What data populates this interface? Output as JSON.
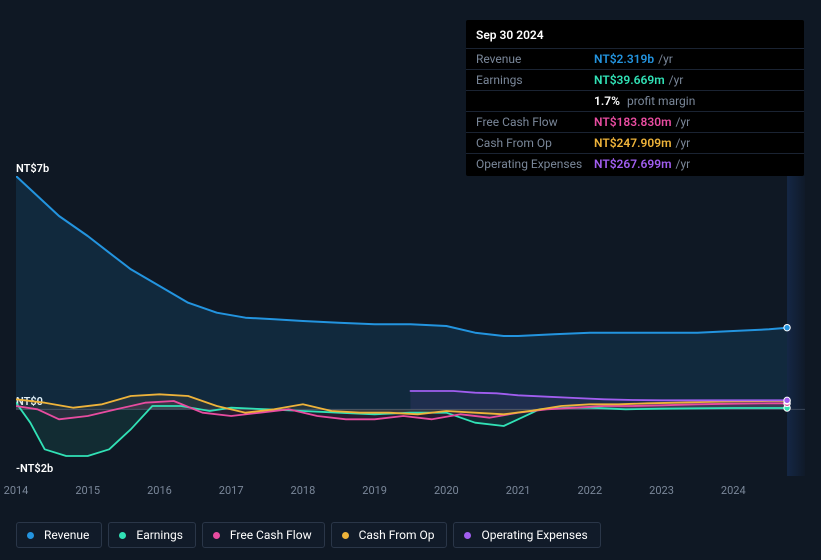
{
  "tooltip": {
    "date": "Sep 30 2024",
    "rows": [
      {
        "label": "Revenue",
        "value": "NT$2.319b",
        "color": "#2394df",
        "suffix": "/yr",
        "extra": ""
      },
      {
        "label": "Earnings",
        "value": "NT$39.669m",
        "color": "#31e2b6",
        "suffix": "/yr",
        "extra": "1.7% profit margin"
      },
      {
        "label": "Free Cash Flow",
        "value": "NT$183.830m",
        "color": "#e84ca0",
        "suffix": "/yr",
        "extra": ""
      },
      {
        "label": "Cash From Op",
        "value": "NT$247.909m",
        "color": "#eeb33a",
        "suffix": "/yr",
        "extra": ""
      },
      {
        "label": "Operating Expenses",
        "value": "NT$267.699m",
        "color": "#a15ef0",
        "suffix": "/yr",
        "extra": ""
      }
    ]
  },
  "chart": {
    "background": "#0f1824",
    "y_min": -2,
    "y_max": 7,
    "y_ticks": [
      {
        "v": 7,
        "label": "NT$7b"
      },
      {
        "v": 0,
        "label": "NT$0"
      },
      {
        "v": -2,
        "label": "-NT$2b"
      }
    ],
    "x_min": 2014,
    "x_max": 2025,
    "x_ticks": [
      2014,
      2015,
      2016,
      2017,
      2018,
      2019,
      2020,
      2021,
      2022,
      2023,
      2024
    ],
    "future_split_x": 2024.75,
    "zero_line_color": "#3a4658",
    "series": [
      {
        "name": "Revenue",
        "color": "#2394df",
        "fill": "rgba(35,148,223,0.14)",
        "width": 2,
        "pts": [
          [
            2014,
            7.0
          ],
          [
            2014.3,
            6.4
          ],
          [
            2014.6,
            5.8
          ],
          [
            2015,
            5.2
          ],
          [
            2015.3,
            4.7
          ],
          [
            2015.6,
            4.2
          ],
          [
            2016,
            3.7
          ],
          [
            2016.4,
            3.2
          ],
          [
            2016.8,
            2.9
          ],
          [
            2017.2,
            2.75
          ],
          [
            2017.6,
            2.7
          ],
          [
            2018,
            2.65
          ],
          [
            2018.5,
            2.6
          ],
          [
            2019,
            2.55
          ],
          [
            2019.5,
            2.55
          ],
          [
            2020,
            2.5
          ],
          [
            2020.4,
            2.3
          ],
          [
            2020.8,
            2.2
          ],
          [
            2021,
            2.2
          ],
          [
            2021.5,
            2.25
          ],
          [
            2022,
            2.3
          ],
          [
            2022.5,
            2.3
          ],
          [
            2023,
            2.3
          ],
          [
            2023.5,
            2.3
          ],
          [
            2024,
            2.35
          ],
          [
            2024.5,
            2.4
          ],
          [
            2024.75,
            2.45
          ]
        ]
      },
      {
        "name": "Earnings",
        "color": "#31e2b6",
        "fill": "rgba(49,226,182,0.10)",
        "width": 1.8,
        "pts": [
          [
            2014,
            0.2
          ],
          [
            2014.2,
            -0.4
          ],
          [
            2014.4,
            -1.2
          ],
          [
            2014.7,
            -1.4
          ],
          [
            2015,
            -1.4
          ],
          [
            2015.3,
            -1.2
          ],
          [
            2015.6,
            -0.6
          ],
          [
            2015.9,
            0.1
          ],
          [
            2016.3,
            0.1
          ],
          [
            2016.7,
            -0.05
          ],
          [
            2017,
            0.05
          ],
          [
            2017.5,
            0.0
          ],
          [
            2018,
            -0.05
          ],
          [
            2018.5,
            -0.1
          ],
          [
            2019,
            -0.15
          ],
          [
            2019.5,
            -0.1
          ],
          [
            2020,
            -0.1
          ],
          [
            2020.4,
            -0.4
          ],
          [
            2020.8,
            -0.5
          ],
          [
            2021,
            -0.3
          ],
          [
            2021.3,
            0.0
          ],
          [
            2021.7,
            0.05
          ],
          [
            2022,
            0.05
          ],
          [
            2022.5,
            0.0
          ],
          [
            2023,
            0.02
          ],
          [
            2023.5,
            0.03
          ],
          [
            2024,
            0.04
          ],
          [
            2024.5,
            0.04
          ],
          [
            2024.75,
            0.04
          ]
        ]
      },
      {
        "name": "Free Cash Flow",
        "color": "#e84ca0",
        "fill": "rgba(232,76,160,0.10)",
        "width": 1.8,
        "pts": [
          [
            2014,
            0.1
          ],
          [
            2014.3,
            0.0
          ],
          [
            2014.6,
            -0.3
          ],
          [
            2015,
            -0.2
          ],
          [
            2015.4,
            0.0
          ],
          [
            2015.8,
            0.2
          ],
          [
            2016.2,
            0.25
          ],
          [
            2016.6,
            -0.1
          ],
          [
            2017,
            -0.2
          ],
          [
            2017.4,
            -0.1
          ],
          [
            2017.8,
            0.0
          ],
          [
            2018.2,
            -0.2
          ],
          [
            2018.6,
            -0.3
          ],
          [
            2019,
            -0.3
          ],
          [
            2019.4,
            -0.2
          ],
          [
            2019.8,
            -0.3
          ],
          [
            2020.2,
            -0.15
          ],
          [
            2020.6,
            -0.25
          ],
          [
            2021,
            -0.1
          ],
          [
            2021.4,
            0.0
          ],
          [
            2021.8,
            0.05
          ],
          [
            2022.2,
            0.1
          ],
          [
            2022.6,
            0.1
          ],
          [
            2023,
            0.12
          ],
          [
            2023.5,
            0.15
          ],
          [
            2024,
            0.17
          ],
          [
            2024.5,
            0.18
          ],
          [
            2024.75,
            0.18
          ]
        ]
      },
      {
        "name": "Cash From Op",
        "color": "#eeb33a",
        "fill": "rgba(238,179,58,0.08)",
        "width": 1.8,
        "pts": [
          [
            2014,
            0.3
          ],
          [
            2014.4,
            0.2
          ],
          [
            2014.8,
            0.05
          ],
          [
            2015.2,
            0.15
          ],
          [
            2015.6,
            0.4
          ],
          [
            2016,
            0.45
          ],
          [
            2016.4,
            0.4
          ],
          [
            2016.8,
            0.1
          ],
          [
            2017.2,
            -0.1
          ],
          [
            2017.6,
            0.0
          ],
          [
            2018,
            0.15
          ],
          [
            2018.4,
            -0.05
          ],
          [
            2018.8,
            -0.1
          ],
          [
            2019.2,
            -0.1
          ],
          [
            2019.6,
            -0.15
          ],
          [
            2020,
            -0.05
          ],
          [
            2020.4,
            -0.1
          ],
          [
            2020.8,
            -0.15
          ],
          [
            2021.2,
            -0.04
          ],
          [
            2021.6,
            0.1
          ],
          [
            2022,
            0.15
          ],
          [
            2022.4,
            0.15
          ],
          [
            2022.8,
            0.18
          ],
          [
            2023.2,
            0.2
          ],
          [
            2023.6,
            0.22
          ],
          [
            2024,
            0.24
          ],
          [
            2024.5,
            0.25
          ],
          [
            2024.75,
            0.25
          ]
        ]
      },
      {
        "name": "Operating Expenses",
        "color": "#a15ef0",
        "fill": "rgba(161,94,240,0.10)",
        "width": 1.8,
        "pts": [
          [
            2019.5,
            0.55
          ],
          [
            2019.8,
            0.55
          ],
          [
            2020.1,
            0.55
          ],
          [
            2020.4,
            0.5
          ],
          [
            2020.7,
            0.48
          ],
          [
            2021,
            0.42
          ],
          [
            2021.4,
            0.38
          ],
          [
            2021.8,
            0.34
          ],
          [
            2022.2,
            0.3
          ],
          [
            2022.6,
            0.28
          ],
          [
            2023,
            0.27
          ],
          [
            2023.5,
            0.27
          ],
          [
            2024,
            0.27
          ],
          [
            2024.5,
            0.27
          ],
          [
            2024.75,
            0.27
          ]
        ]
      }
    ]
  },
  "legend": [
    {
      "label": "Revenue",
      "color": "#2394df"
    },
    {
      "label": "Earnings",
      "color": "#31e2b6"
    },
    {
      "label": "Free Cash Flow",
      "color": "#e84ca0"
    },
    {
      "label": "Cash From Op",
      "color": "#eeb33a"
    },
    {
      "label": "Operating Expenses",
      "color": "#a15ef0"
    }
  ]
}
